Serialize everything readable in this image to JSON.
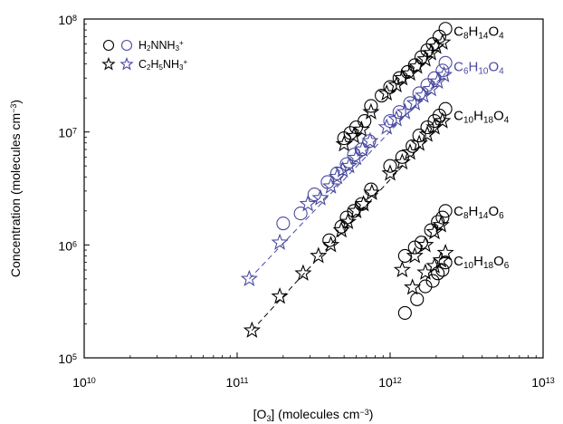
{
  "chart_data": {
    "type": "scatter",
    "x_scale": "log",
    "y_scale": "log",
    "xlim": [
      10000000000.0,
      10000000000000.0
    ],
    "ylim": [
      100000.0,
      100000000.0
    ],
    "xlabel": {
      "pre": "[O",
      "sub": "3",
      "post": "] (molecules cm",
      "sup": "−3",
      "tail": ")"
    },
    "ylabel": {
      "pre": "Concentration (molecules cm",
      "sup": "−3",
      "tail": ")"
    },
    "x_ticks": [
      {
        "value": 10000000000.0,
        "base": "10",
        "exp": "10"
      },
      {
        "value": 100000000000.0,
        "base": "10",
        "exp": "11"
      },
      {
        "value": 1000000000000.0,
        "base": "10",
        "exp": "12"
      },
      {
        "value": 10000000000000.0,
        "base": "10",
        "exp": "13"
      }
    ],
    "y_ticks": [
      {
        "value": 100000.0,
        "base": "10",
        "exp": "5"
      },
      {
        "value": 1000000.0,
        "base": "10",
        "exp": "6"
      },
      {
        "value": 10000000.0,
        "base": "10",
        "exp": "7"
      },
      {
        "value": 100000000.0,
        "base": "10",
        "exp": "8"
      }
    ],
    "legend": {
      "position": "top-left",
      "entries": [
        {
          "markers": [
            "circle",
            "circle"
          ],
          "colors": [
            "#000000",
            "#4a4aa0"
          ],
          "label": [
            [
              "H",
              ""
            ],
            [
              "2",
              "sub"
            ],
            [
              "NNH",
              ""
            ],
            [
              "3",
              "sub"
            ],
            [
              "+",
              "sup"
            ]
          ]
        },
        {
          "markers": [
            "star",
            "star"
          ],
          "colors": [
            "#000000",
            "#4a4aa0"
          ],
          "label": [
            [
              "C",
              ""
            ],
            [
              "2",
              "sub"
            ],
            [
              "H",
              ""
            ],
            [
              "5",
              "sub"
            ],
            [
              "NH",
              ""
            ],
            [
              "3",
              "sub"
            ],
            [
              "+",
              "sup"
            ]
          ]
        }
      ]
    },
    "series": [
      {
        "label": [
          [
            "C",
            ""
          ],
          [
            "8",
            "sub"
          ],
          [
            "H",
            ""
          ],
          [
            "14",
            "sub"
          ],
          [
            "O",
            ""
          ],
          [
            "4",
            "sub"
          ]
        ],
        "label_anchor": [
          2600000000000.0,
          78000000.0
        ],
        "color": "#000000",
        "circles": [
          [
            1000000000000.0,
            25000000.0
          ],
          [
            1150000000000.0,
            30000000.0
          ],
          [
            1300000000000.0,
            34000000.0
          ],
          [
            1450000000000.0,
            39000000.0
          ],
          [
            1600000000000.0,
            46000000.0
          ],
          [
            1750000000000.0,
            53000000.0
          ],
          [
            1900000000000.0,
            60000000.0
          ],
          [
            2100000000000.0,
            70000000.0
          ],
          [
            2300000000000.0,
            82000000.0
          ],
          [
            500000000000.0,
            8800000.0
          ],
          [
            550000000000.0,
            9800000.0
          ],
          [
            600000000000.0,
            11000000.0
          ],
          [
            680000000000.0,
            12500000.0
          ],
          [
            750000000000.0,
            17000000.0
          ],
          [
            880000000000.0,
            21000000.0
          ]
        ],
        "stars": [
          [
            950000000000.0,
            22000000.0
          ],
          [
            1100000000000.0,
            26000000.0
          ],
          [
            1200000000000.0,
            30000000.0
          ],
          [
            1350000000000.0,
            33000000.0
          ],
          [
            1500000000000.0,
            38000000.0
          ],
          [
            1700000000000.0,
            44000000.0
          ],
          [
            1850000000000.0,
            50000000.0
          ],
          [
            2000000000000.0,
            57000000.0
          ],
          [
            2200000000000.0,
            62000000.0
          ],
          [
            500000000000.0,
            7800000.0
          ],
          [
            580000000000.0,
            9200000.0
          ],
          [
            650000000000.0,
            10500000.0
          ],
          [
            750000000000.0,
            15000000.0
          ]
        ]
      },
      {
        "label": [
          [
            "C",
            ""
          ],
          [
            "6",
            "sub"
          ],
          [
            "H",
            ""
          ],
          [
            "10",
            "sub"
          ],
          [
            "O",
            ""
          ],
          [
            "4",
            "sub"
          ]
        ],
        "label_anchor": [
          2600000000000.0,
          38000000.0
        ],
        "color": "#4a4aa0",
        "circles": [
          [
            200000000000.0,
            1550000.0
          ],
          [
            260000000000.0,
            1900000.0
          ],
          [
            320000000000.0,
            2800000.0
          ],
          [
            390000000000.0,
            3600000.0
          ],
          [
            450000000000.0,
            4300000.0
          ],
          [
            520000000000.0,
            5200000.0
          ],
          [
            580000000000.0,
            6300000.0
          ],
          [
            650000000000.0,
            7000000.0
          ],
          [
            730000000000.0,
            8300000.0
          ],
          [
            1000000000000.0,
            12500000.0
          ],
          [
            1150000000000.0,
            15000000.0
          ],
          [
            1350000000000.0,
            18000000.0
          ],
          [
            1550000000000.0,
            22000000.0
          ],
          [
            1750000000000.0,
            26000000.0
          ],
          [
            1950000000000.0,
            30000000.0
          ],
          [
            2200000000000.0,
            35000000.0
          ],
          [
            2300000000000.0,
            41000000.0
          ]
        ],
        "stars": [
          [
            120000000000.0,
            500000.0
          ],
          [
            190000000000.0,
            1050000.0
          ],
          [
            290000000000.0,
            2300000.0
          ],
          [
            350000000000.0,
            2600000.0
          ],
          [
            410000000000.0,
            3300000.0
          ],
          [
            450000000000.0,
            4000000.0
          ],
          [
            490000000000.0,
            4600000.0
          ],
          [
            540000000000.0,
            5000000.0
          ],
          [
            600000000000.0,
            5900000.0
          ],
          [
            660000000000.0,
            7000000.0
          ],
          [
            740000000000.0,
            8300000.0
          ],
          [
            950000000000.0,
            11000000.0
          ],
          [
            1100000000000.0,
            13000000.0
          ],
          [
            1250000000000.0,
            15000000.0
          ],
          [
            1450000000000.0,
            18000000.0
          ],
          [
            1650000000000.0,
            21000000.0
          ],
          [
            1850000000000.0,
            24000000.0
          ],
          [
            2050000000000.0,
            28000000.0
          ],
          [
            2250000000000.0,
            32000000.0
          ]
        ],
        "fit": [
          [
            120000000000.0,
            500000.0
          ],
          [
            2300000000000.0,
            33000000.0
          ]
        ]
      },
      {
        "label": [
          [
            "C",
            ""
          ],
          [
            "10",
            "sub"
          ],
          [
            "H",
            ""
          ],
          [
            "18",
            "sub"
          ],
          [
            "O",
            ""
          ],
          [
            "4",
            "sub"
          ]
        ],
        "label_anchor": [
          2600000000000.0,
          14000000.0
        ],
        "color": "#000000",
        "circles": [
          [
            400000000000.0,
            1100000.0
          ],
          [
            480000000000.0,
            1450000.0
          ],
          [
            520000000000.0,
            1750000.0
          ],
          [
            580000000000.0,
            2000000.0
          ],
          [
            650000000000.0,
            2300000.0
          ],
          [
            750000000000.0,
            3100000.0
          ],
          [
            1000000000000.0,
            5000000.0
          ],
          [
            1200000000000.0,
            6000000.0
          ],
          [
            1400000000000.0,
            7500000.0
          ],
          [
            1550000000000.0,
            9300000.0
          ],
          [
            1750000000000.0,
            11000000.0
          ],
          [
            1950000000000.0,
            12500000.0
          ],
          [
            2100000000000.0,
            14000000.0
          ],
          [
            2300000000000.0,
            16000000.0
          ]
        ],
        "stars": [
          [
            125000000000.0,
            175000.0
          ],
          [
            190000000000.0,
            350000.0
          ],
          [
            270000000000.0,
            560000.0
          ],
          [
            340000000000.0,
            800000.0
          ],
          [
            410000000000.0,
            1000000.0
          ],
          [
            480000000000.0,
            1350000.0
          ],
          [
            530000000000.0,
            1600000.0
          ],
          [
            600000000000.0,
            2000000.0
          ],
          [
            670000000000.0,
            2300000.0
          ],
          [
            760000000000.0,
            2900000.0
          ],
          [
            1000000000000.0,
            4300000.0
          ],
          [
            1200000000000.0,
            5400000.0
          ],
          [
            1350000000000.0,
            6600000.0
          ],
          [
            1550000000000.0,
            7900000.0
          ],
          [
            1750000000000.0,
            9500000.0
          ],
          [
            1950000000000.0,
            11000000.0
          ],
          [
            2200000000000.0,
            12500000.0
          ]
        ],
        "fit": [
          [
            125000000000.0,
            175000.0
          ],
          [
            2300000000000.0,
            13000000.0
          ]
        ]
      },
      {
        "label": [
          [
            "C",
            ""
          ],
          [
            "8",
            "sub"
          ],
          [
            "H",
            ""
          ],
          [
            "14",
            "sub"
          ],
          [
            "O",
            ""
          ],
          [
            "6",
            "sub"
          ]
        ],
        "label_anchor": [
          2600000000000.0,
          2000000.0
        ],
        "color": "#000000",
        "circles": [
          [
            1250000000000.0,
            800000.0
          ],
          [
            1450000000000.0,
            950000.0
          ],
          [
            1600000000000.0,
            1050000.0
          ],
          [
            1850000000000.0,
            1350000.0
          ],
          [
            2050000000000.0,
            1600000.0
          ],
          [
            2200000000000.0,
            1750000.0
          ],
          [
            2300000000000.0,
            2000000.0
          ]
        ],
        "stars": [
          [
            1200000000000.0,
            600000.0
          ],
          [
            1450000000000.0,
            800000.0
          ],
          [
            1700000000000.0,
            1000000.0
          ],
          [
            1950000000000.0,
            1300000.0
          ],
          [
            2150000000000.0,
            1500000.0
          ]
        ]
      },
      {
        "label": [
          [
            "C",
            ""
          ],
          [
            "10",
            "sub"
          ],
          [
            "H",
            ""
          ],
          [
            "18",
            "sub"
          ],
          [
            "O",
            ""
          ],
          [
            "6",
            "sub"
          ]
        ],
        "label_anchor": [
          2600000000000.0,
          720000.0
        ],
        "color": "#000000",
        "circles": [
          [
            1250000000000.0,
            250000.0
          ],
          [
            1500000000000.0,
            330000.0
          ],
          [
            1700000000000.0,
            430000.0
          ],
          [
            1900000000000.0,
            480000.0
          ],
          [
            2050000000000.0,
            560000.0
          ],
          [
            2200000000000.0,
            600000.0
          ],
          [
            2300000000000.0,
            700000.0
          ]
        ],
        "stars": [
          [
            1400000000000.0,
            420000.0
          ],
          [
            1700000000000.0,
            570000.0
          ],
          [
            1950000000000.0,
            650000.0
          ],
          [
            2150000000000.0,
            730000.0
          ],
          [
            2300000000000.0,
            850000.0
          ]
        ]
      }
    ]
  }
}
